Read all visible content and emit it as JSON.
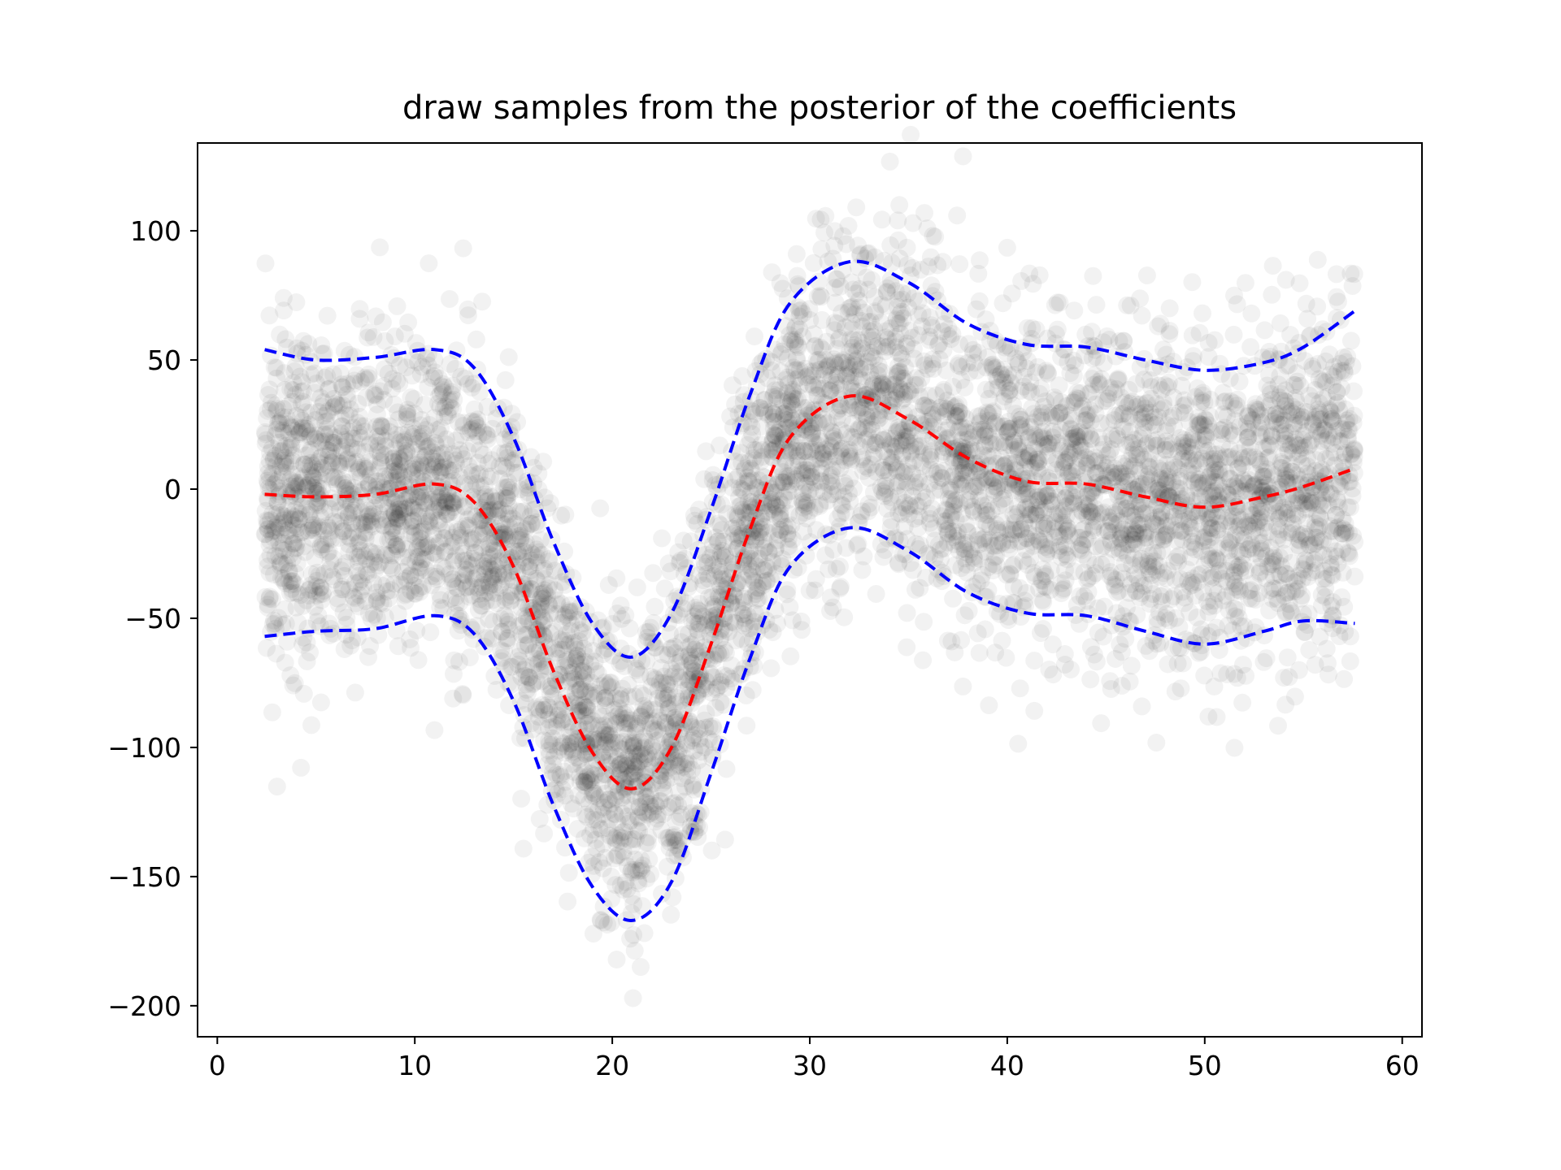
{
  "chart_data": {
    "type": "scatter",
    "title": "draw samples from the posterior of the coefficients",
    "xlabel": "",
    "ylabel": "",
    "xlim": [
      -1,
      61
    ],
    "ylim": [
      -212,
      134
    ],
    "x_ticks": [
      0,
      10,
      20,
      30,
      40,
      50,
      60
    ],
    "y_ticks": [
      -200,
      -150,
      -100,
      -50,
      0,
      50,
      100
    ],
    "x_tick_labels": [
      "0",
      "10",
      "20",
      "30",
      "40",
      "50",
      "60"
    ],
    "y_tick_labels": [
      "−200",
      "−150",
      "−100",
      "−50",
      "0",
      "50",
      "100"
    ],
    "grid": false,
    "legend": "none",
    "x_range": [
      2.4,
      57.6
    ],
    "point_opacity": 0.05,
    "series": [
      {
        "role": "posterior-mean",
        "color": "#ff0000",
        "linestyle": "dashed",
        "x": [
          2.4,
          5,
          8,
          11,
          13,
          15,
          17,
          19,
          21,
          23,
          25,
          27,
          29,
          32,
          35,
          38,
          41,
          44,
          47,
          50,
          53,
          55,
          57.6
        ],
        "y": [
          -2,
          -3,
          -2,
          2,
          -5,
          -30,
          -70,
          -102,
          -116,
          -100,
          -60,
          -15,
          20,
          36,
          27,
          12,
          3,
          2,
          -3,
          -7,
          -3,
          1,
          8
        ]
      },
      {
        "role": "upper-bound",
        "color": "#0000ff",
        "linestyle": "dashed",
        "x": [
          2.4,
          5,
          8,
          11,
          13,
          15,
          17,
          19,
          21,
          23,
          25,
          27,
          29,
          32,
          35,
          38,
          41,
          44,
          47,
          50,
          53,
          55,
          57.6
        ],
        "y": [
          54,
          50,
          51,
          54,
          47,
          20,
          -20,
          -52,
          -65,
          -48,
          -8,
          37,
          72,
          88,
          80,
          64,
          56,
          55,
          50,
          46,
          49,
          55,
          69
        ]
      },
      {
        "role": "lower-bound",
        "color": "#0000ff",
        "linestyle": "dashed",
        "x": [
          2.4,
          5,
          8,
          11,
          13,
          15,
          17,
          19,
          21,
          23,
          25,
          27,
          29,
          32,
          35,
          38,
          41,
          44,
          47,
          50,
          53,
          55,
          57.6
        ],
        "y": [
          -57,
          -55,
          -54,
          -49,
          -56,
          -82,
          -122,
          -154,
          -167,
          -152,
          -110,
          -65,
          -30,
          -15,
          -24,
          -40,
          -48,
          -49,
          -55,
          -60,
          -55,
          -51,
          -52
        ]
      }
    ]
  }
}
